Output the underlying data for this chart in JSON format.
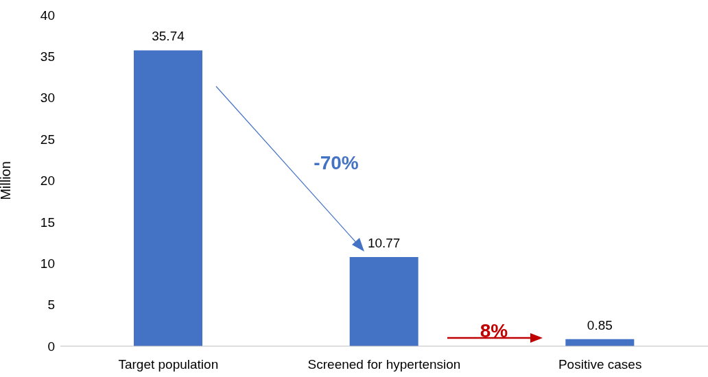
{
  "chart_data": {
    "type": "bar",
    "categories": [
      "Target population",
      "Screened for hypertension",
      "Positive cases"
    ],
    "values": [
      35.74,
      10.77,
      0.85
    ],
    "color": "#4472c4",
    "ylabel": "Million",
    "ylim": [
      0,
      40
    ],
    "yticks": [
      0,
      5,
      10,
      15,
      20,
      25,
      30,
      35,
      40
    ],
    "grid": false,
    "data_labels": true,
    "annotations": [
      "-70%",
      "8%"
    ]
  }
}
